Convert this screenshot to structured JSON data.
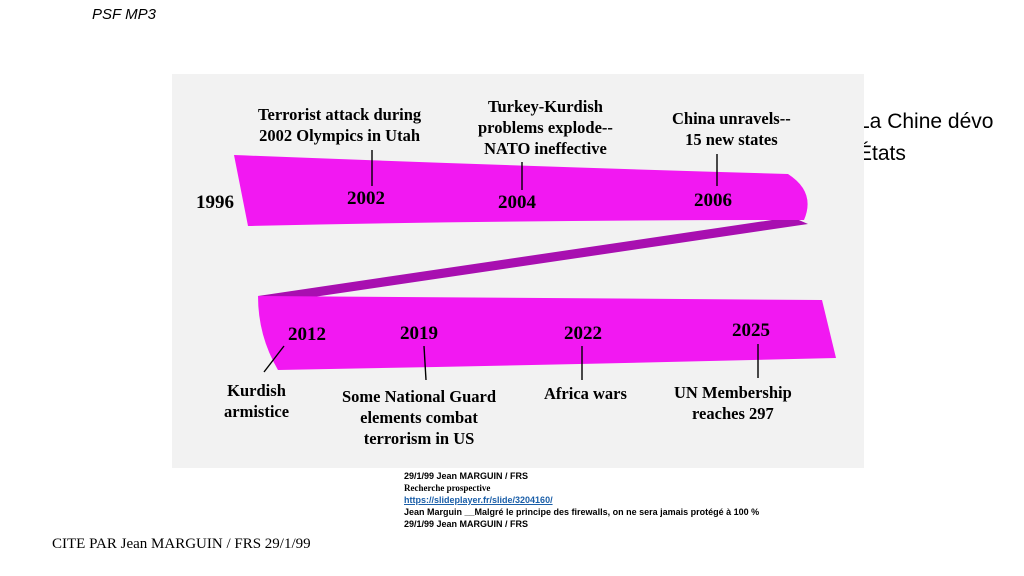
{
  "header": {
    "label": "PSF MP3"
  },
  "side_text": {
    "line1": "La Chine dévo",
    "line2": "États"
  },
  "timeline": {
    "years": {
      "y1996": "1996",
      "y2002": "2002",
      "y2004": "2004",
      "y2006": "2006",
      "y2012": "2012",
      "y2019": "2019",
      "y2022": "2022",
      "y2025": "2025"
    },
    "events": {
      "e2002": [
        "Terrorist attack during",
        "2002 Olympics in Utah"
      ],
      "e2004": [
        "Turkey-Kurdish",
        "problems explode--",
        "NATO ineffective"
      ],
      "e2006": [
        "China unravels--",
        "15 new states"
      ],
      "e2012": [
        "Kurdish",
        "armistice"
      ],
      "e2019": [
        "Some National Guard",
        "elements combat",
        "terrorism in US"
      ],
      "e2022": [
        "Africa wars"
      ],
      "e2025": [
        "UN Membership",
        "reaches 297"
      ]
    },
    "colors": {
      "ribbon": "#f218f2",
      "ribbon_dark": "#a80fb0",
      "background": "#f2f2f2"
    }
  },
  "source": {
    "line1": "29/1/99 Jean MARGUIN / FRS",
    "line2": "Recherche prospective",
    "link": "https://slideplayer.fr/slide/3204160/",
    "line4": "Jean Marguin __Malgré le principe des firewalls, on ne sera jamais protégé à 100 %",
    "line5": "29/1/99 Jean MARGUIN / FRS"
  },
  "citation": "CITE PAR Jean MARGUIN / FRS 29/1/99"
}
